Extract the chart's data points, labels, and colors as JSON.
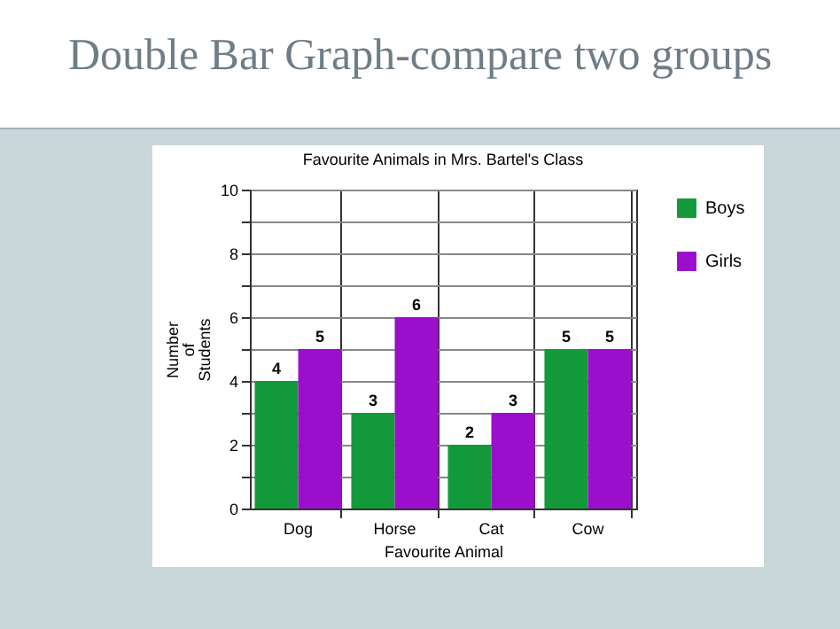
{
  "chart_data": {
    "type": "bar",
    "title": "Double Bar Graph-compare two groups",
    "subtitle": "Favourite Animals in Mrs. Bartel's Class",
    "xlabel": "Favourite Animal",
    "ylabel": "Number\nof\nStudents",
    "categories": [
      "Dog",
      "Horse",
      "Cat",
      "Cow"
    ],
    "series": [
      {
        "name": "Boys",
        "color": "#129a3a",
        "values": [
          4,
          3,
          2,
          5
        ]
      },
      {
        "name": "Girls",
        "color": "#9b0fcc",
        "values": [
          5,
          6,
          3,
          5
        ]
      }
    ],
    "ylim": [
      0,
      10
    ],
    "yticks": [
      0,
      {
        "value": 1,
        "label": null
      },
      2,
      {
        "value": 3,
        "label": null
      },
      4,
      {
        "value": 5,
        "label": null
      },
      6,
      {
        "value": 7,
        "label": null
      },
      8,
      {
        "value": 9,
        "label": null
      },
      10
    ],
    "grid": true,
    "legend": "right",
    "data_labels": true
  }
}
